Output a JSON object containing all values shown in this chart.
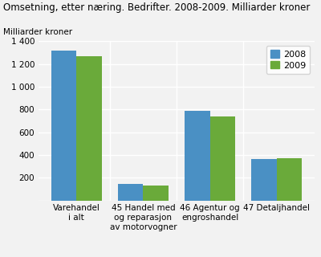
{
  "title": "Omsetning, etter næring. Bedrifter. 2008-2009. Milliarder kroner",
  "ylabel": "Milliarder kroner",
  "categories": [
    "Varehandel\ni alt",
    "45 Handel med\nog reparasjon\nav motorvogner",
    "46 Agentur og\nengroshandel",
    "47 Detaljhandel"
  ],
  "values_2008": [
    1320,
    143,
    790,
    365
  ],
  "values_2009": [
    1265,
    133,
    735,
    370
  ],
  "color_2008": "#4a90c4",
  "color_2009": "#6aaa3a",
  "legend_labels": [
    "2008",
    "2009"
  ],
  "ylim": [
    0,
    1400
  ],
  "yticks": [
    0,
    200,
    400,
    600,
    800,
    1000,
    1200,
    1400
  ],
  "ytick_labels": [
    "",
    "200",
    "400",
    "600",
    "800",
    "1 000",
    "1 200",
    "1 400"
  ],
  "background_color": "#f2f2f2",
  "grid_color": "#ffffff",
  "bar_width": 0.38,
  "title_fontsize": 8.5,
  "ylabel_fontsize": 7.5,
  "tick_fontsize": 7.5,
  "legend_fontsize": 8
}
